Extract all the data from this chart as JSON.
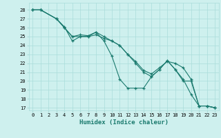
{
  "xlabel": "Humidex (Indice chaleur)",
  "bg_color": "#cef0ee",
  "grid_color": "#aaddda",
  "line_color": "#1a7a6e",
  "xlim": [
    -0.5,
    23.5
  ],
  "ylim": [
    16.7,
    28.8
  ],
  "yticks": [
    17,
    18,
    19,
    20,
    21,
    22,
    23,
    24,
    25,
    26,
    27,
    28
  ],
  "xticks": [
    0,
    1,
    2,
    3,
    4,
    5,
    6,
    7,
    8,
    9,
    10,
    11,
    12,
    13,
    14,
    15,
    16,
    17,
    18,
    19,
    20,
    21,
    22,
    23
  ],
  "line1_x": [
    0,
    1,
    3,
    4,
    5,
    6,
    7,
    8,
    9,
    10,
    11,
    12,
    13,
    14,
    15,
    16,
    17,
    18,
    19,
    20,
    21,
    22,
    23
  ],
  "line1_y": [
    28,
    28,
    27,
    26,
    25,
    25,
    25,
    25.2,
    24.8,
    24.5,
    24,
    23,
    22.2,
    21.2,
    20.8,
    21.5,
    22.2,
    22,
    21.5,
    20.2,
    17.2,
    17.2,
    17.0
  ],
  "line2_x": [
    0,
    1,
    3,
    4,
    5,
    6,
    7,
    8,
    9,
    10,
    11,
    12,
    13,
    14,
    15,
    16,
    17,
    18,
    19,
    20,
    21,
    22,
    23
  ],
  "line2_y": [
    28,
    28,
    27,
    26,
    25,
    25.2,
    25.1,
    25.5,
    25,
    24.5,
    24,
    23,
    22,
    21,
    20.5,
    21.3,
    22.3,
    21.3,
    20,
    20,
    17.2,
    17.2,
    17.0
  ],
  "line3_x": [
    0,
    1,
    3,
    4,
    5,
    6,
    7,
    8,
    9,
    10,
    11,
    12,
    13,
    14,
    15,
    16,
    17,
    18,
    19,
    20,
    21,
    22,
    23
  ],
  "line3_y": [
    28,
    28,
    27,
    26.1,
    24.5,
    25,
    25,
    25.5,
    24.5,
    22.8,
    20.2,
    19.2,
    19.2,
    19.2,
    20.5,
    21.3,
    22.3,
    21.3,
    20.2,
    18.5,
    17.2,
    17.2,
    17.0
  ]
}
